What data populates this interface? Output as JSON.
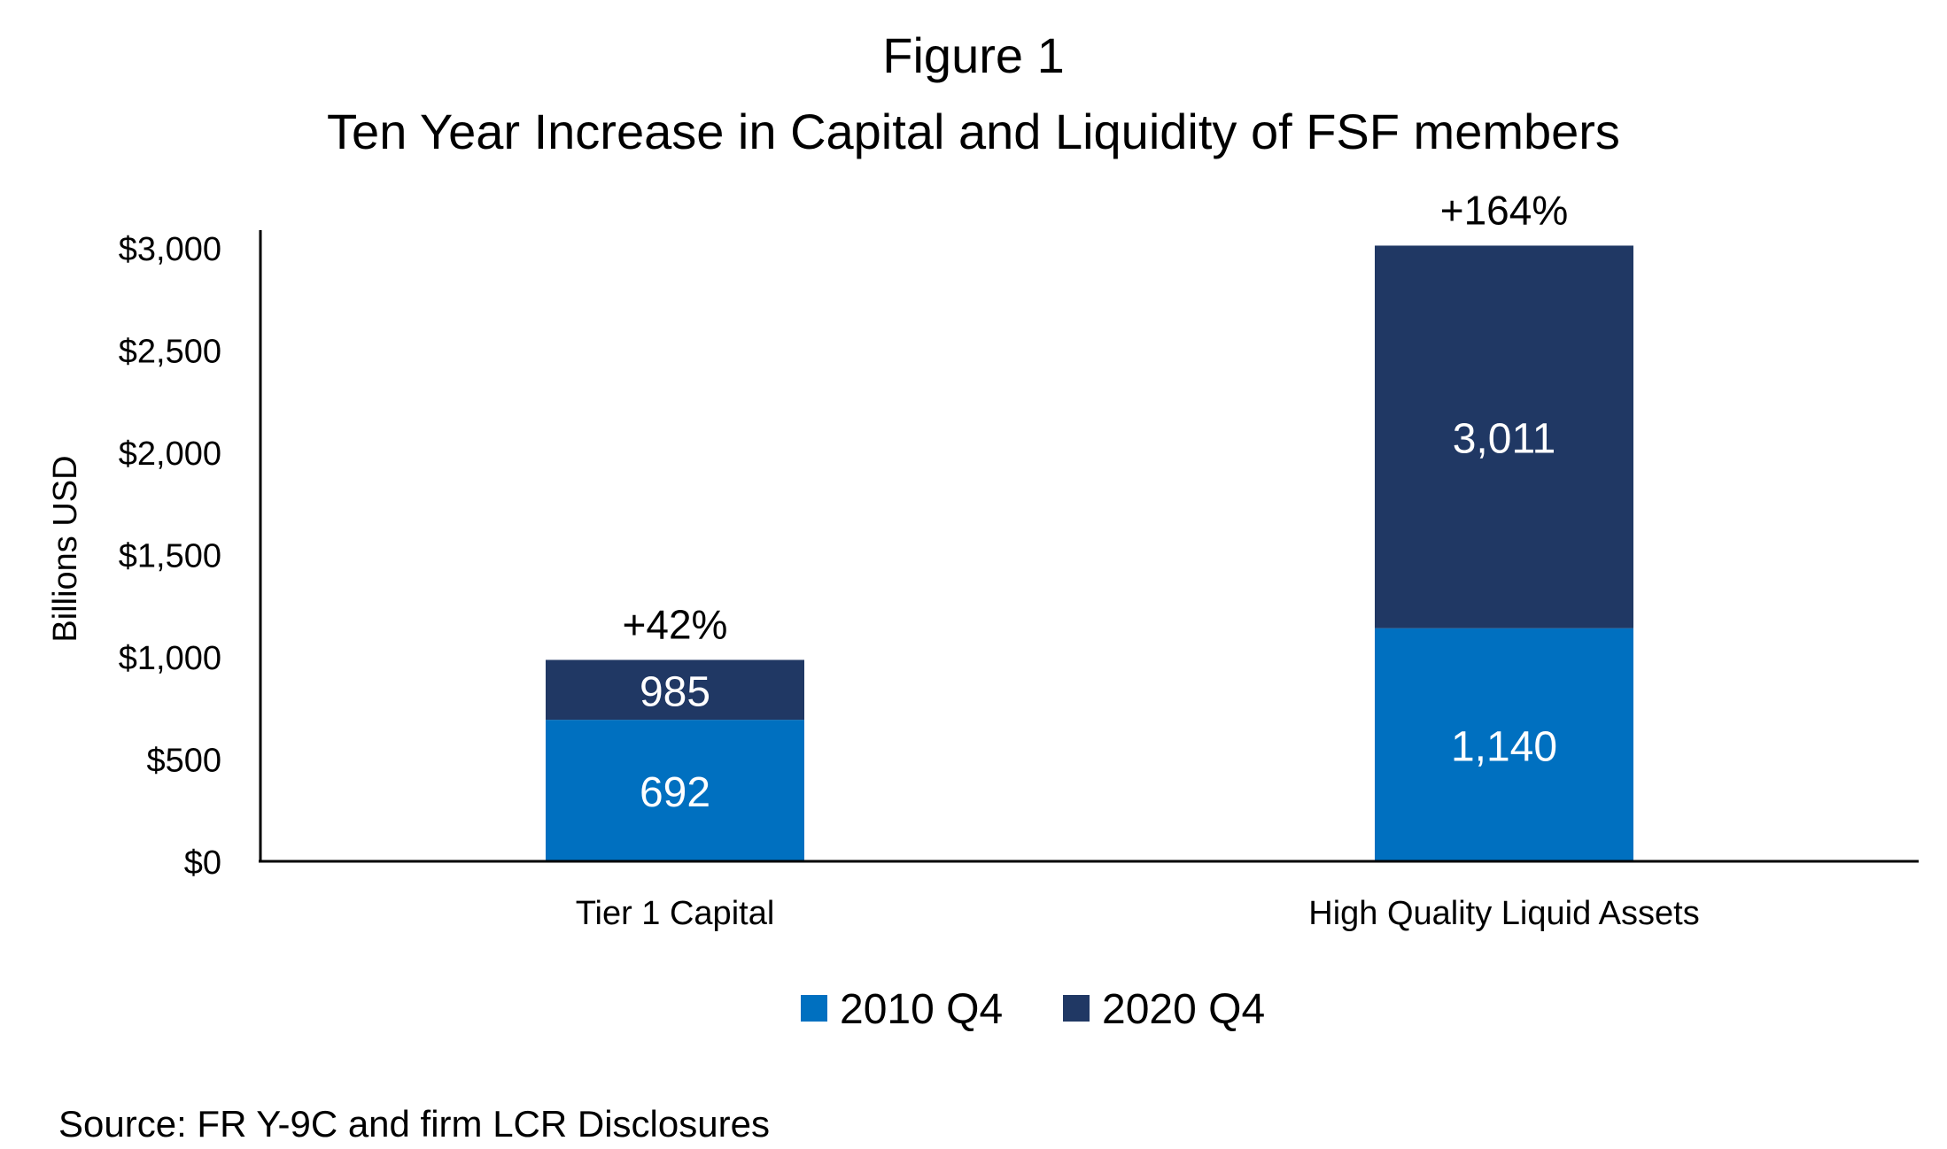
{
  "chart_data": {
    "type": "bar",
    "stacked": true,
    "title": "Figure 1",
    "subtitle": "Ten Year Increase in Capital and Liquidity of FSF members",
    "xlabel": "",
    "ylabel": "Billions USD",
    "ylim": [
      0,
      3000
    ],
    "yticks": [
      0,
      500,
      1000,
      1500,
      2000,
      2500,
      3000
    ],
    "ytick_labels": [
      "$0",
      "$500",
      "$1,000",
      "$1,500",
      "$2,000",
      "$2,500",
      "$3,000"
    ],
    "grid": false,
    "categories": [
      "Tier 1 Capital",
      "High Quality Liquid Assets"
    ],
    "series": [
      {
        "name": "2010 Q4",
        "color": "#0070C0",
        "values": [
          692,
          1140
        ],
        "labels": [
          "692",
          "1,140"
        ]
      },
      {
        "name": "2020 Q4",
        "color": "#203864",
        "totals": [
          985,
          3011
        ],
        "labels": [
          "985",
          "3,011"
        ]
      }
    ],
    "annotations": [
      "+42%",
      "+164%"
    ],
    "legend_position": "bottom",
    "source": "Source: FR Y-9C and firm LCR Disclosures"
  }
}
